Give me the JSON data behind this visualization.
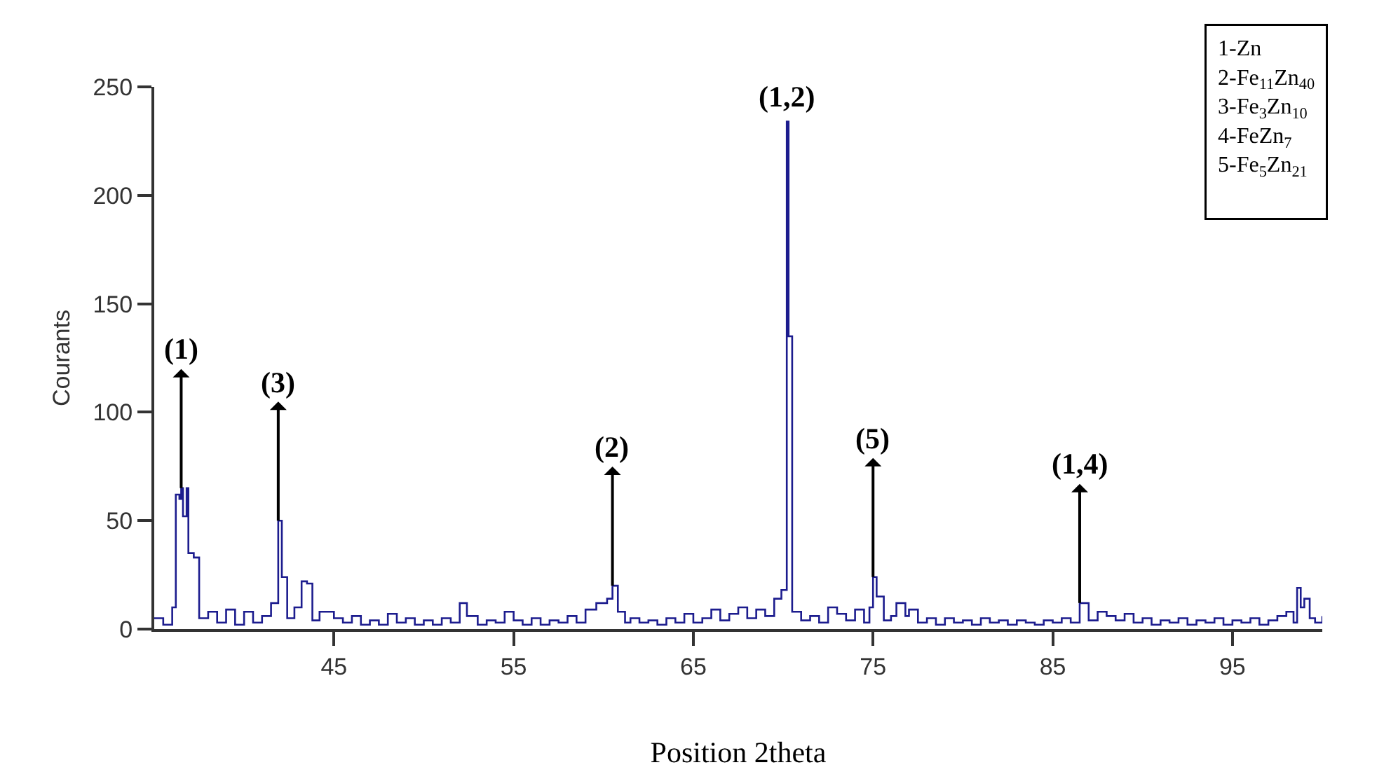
{
  "chart_data": {
    "type": "step",
    "xlabel": "Position 2theta",
    "ylabel": "Courants",
    "xlim": [
      35,
      100
    ],
    "xticks": [
      45,
      55,
      65,
      75,
      85,
      95
    ],
    "ylim": [
      0,
      250
    ],
    "yticks": [
      0,
      50,
      100,
      150,
      200,
      250
    ],
    "series": [
      {
        "color": "#1c1c8e",
        "x": [
          35,
          35.5,
          36,
          36.2,
          36.4,
          36.5,
          36.6,
          36.8,
          36.9,
          37.2,
          37.5,
          38,
          38.5,
          39,
          39.5,
          40,
          40.5,
          41,
          41.5,
          41.9,
          42.1,
          42.4,
          42.8,
          43.2,
          43.5,
          43.8,
          44.2,
          45,
          45.5,
          46,
          46.5,
          47,
          47.5,
          48,
          48.5,
          49,
          49.5,
          50,
          50.5,
          51,
          51.5,
          52,
          52.4,
          53,
          53.5,
          54,
          54.5,
          55,
          55.5,
          56,
          56.5,
          57,
          57.5,
          58,
          58.5,
          59,
          59.6,
          60.2,
          60.5,
          60.8,
          61.2,
          61.5,
          62,
          62.5,
          63,
          63.5,
          64,
          64.5,
          65,
          65.5,
          66,
          66.5,
          67,
          67.5,
          68,
          68.5,
          69,
          69.5,
          69.9,
          70.2,
          70.3,
          70.5,
          71,
          71.5,
          72,
          72.5,
          73,
          73.5,
          74,
          74.5,
          74.8,
          75,
          75.2,
          75.6,
          76,
          76.3,
          76.8,
          77,
          77.5,
          78,
          78.5,
          79,
          79.5,
          80,
          80.5,
          81,
          81.5,
          82,
          82.5,
          83,
          83.5,
          84,
          84.5,
          85,
          85.5,
          86,
          86.5,
          87,
          87.5,
          88,
          88.5,
          89,
          89.5,
          90,
          90.5,
          91,
          91.5,
          92,
          92.5,
          93,
          93.5,
          94,
          94.5,
          95,
          95.5,
          96,
          96.5,
          97,
          97.5,
          98,
          98.4,
          98.6,
          98.8,
          99,
          99.3,
          99.6,
          100
        ],
        "values": [
          5,
          2,
          10,
          62,
          60,
          65,
          52,
          65,
          35,
          33,
          5,
          8,
          3,
          9,
          2,
          8,
          3,
          6,
          12,
          50,
          24,
          5,
          10,
          22,
          21,
          4,
          8,
          5,
          3,
          6,
          2,
          4,
          2,
          7,
          3,
          5,
          2,
          4,
          2,
          5,
          3,
          12,
          6,
          2,
          4,
          3,
          8,
          4,
          2,
          5,
          2,
          4,
          3,
          6,
          3,
          9,
          12,
          14,
          20,
          8,
          3,
          5,
          3,
          4,
          2,
          5,
          3,
          7,
          3,
          5,
          9,
          4,
          7,
          10,
          5,
          9,
          6,
          14,
          18,
          234,
          135,
          8,
          4,
          6,
          3,
          10,
          7,
          4,
          9,
          3,
          10,
          24,
          15,
          4,
          6,
          12,
          6,
          9,
          3,
          5,
          2,
          5,
          3,
          4,
          2,
          5,
          3,
          4,
          2,
          4,
          3,
          2,
          4,
          3,
          5,
          3,
          12,
          4,
          8,
          6,
          4,
          7,
          3,
          5,
          2,
          4,
          3,
          5,
          2,
          4,
          3,
          5,
          2,
          4,
          3,
          5,
          2,
          4,
          6,
          8,
          3,
          19,
          10,
          14,
          5,
          3,
          6
        ]
      }
    ],
    "annotations": [
      {
        "text": "(1)",
        "x": 36.5,
        "y": 65
      },
      {
        "text": "(3)",
        "x": 41.9,
        "y": 50
      },
      {
        "text": "(2)",
        "x": 60.5,
        "y": 20
      },
      {
        "text": "(1,2)",
        "x": 70.2,
        "y": 234
      },
      {
        "text": "(5)",
        "x": 75,
        "y": 24
      },
      {
        "text": "(1,4)",
        "x": 86.5,
        "y": 12
      },
      "1-Zn",
      "2-Fe$_{11}$Zn$_{40}$",
      "3-Fe$_{3}$Zn$_{10}$",
      "4-FeZn$_{7}$",
      "5-Fe$_{5}$Zn$_{21}$"
    ]
  }
}
